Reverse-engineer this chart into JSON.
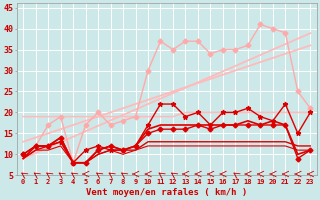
{
  "xlabel": "Vent moyen/en rafales ( km/h )",
  "background_color": "#cce8e8",
  "grid_color": "#ffffff",
  "x_values": [
    0,
    1,
    2,
    3,
    4,
    5,
    6,
    7,
    8,
    9,
    10,
    11,
    12,
    13,
    14,
    15,
    16,
    17,
    18,
    19,
    20,
    21,
    22,
    23
  ],
  "lines": [
    {
      "y": [
        9.0,
        10.3,
        11.6,
        12.9,
        14.2,
        15.5,
        16.8,
        18.1,
        19.4,
        20.7,
        22.0,
        23.3,
        24.6,
        25.9,
        27.2,
        28.5,
        29.8,
        31.1,
        32.4,
        33.7,
        35.0,
        36.3,
        37.6,
        38.9
      ],
      "color": "#ffbbbb",
      "marker": null,
      "lw": 1.3,
      "zorder": 1
    },
    {
      "y": [
        13.0,
        14.0,
        15.0,
        16.0,
        17.0,
        18.0,
        19.0,
        20.0,
        21.0,
        22.0,
        23.0,
        24.0,
        25.0,
        26.0,
        27.0,
        28.0,
        29.0,
        30.0,
        31.0,
        32.0,
        33.0,
        34.0,
        35.0,
        36.0
      ],
      "color": "#ffbbbb",
      "marker": null,
      "lw": 1.3,
      "zorder": 1
    },
    {
      "y": [
        19,
        19,
        19,
        19,
        19,
        19,
        19,
        19,
        19,
        19,
        19,
        19,
        19,
        20,
        20,
        20,
        20,
        20,
        20,
        20,
        20,
        20,
        20,
        20
      ],
      "color": "#ffbbbb",
      "marker": null,
      "lw": 1.1,
      "zorder": 1
    },
    {
      "y": [
        10,
        12,
        17,
        19,
        8,
        17,
        20,
        17,
        18,
        19,
        30,
        37,
        35,
        37,
        37,
        34,
        35,
        35,
        36,
        41,
        40,
        39,
        25,
        21
      ],
      "color": "#ffaaaa",
      "marker": "D",
      "lw": 1.0,
      "ms": 2.5,
      "zorder": 2
    },
    {
      "y": [
        10,
        12,
        12,
        13,
        8,
        11,
        12,
        11,
        11,
        12,
        17,
        22,
        22,
        19,
        20,
        17,
        20,
        20,
        21,
        19,
        18,
        22,
        15,
        20
      ],
      "color": "#dd0000",
      "marker": "*",
      "lw": 1.0,
      "ms": 3.5,
      "zorder": 3
    },
    {
      "y": [
        10,
        12,
        12,
        14,
        8,
        8,
        11,
        12,
        11,
        12,
        15,
        16,
        16,
        16,
        17,
        16,
        17,
        17,
        17,
        17,
        17,
        17,
        9,
        11
      ],
      "color": "#dd0000",
      "marker": "D",
      "lw": 1.0,
      "ms": 2.5,
      "zorder": 3
    },
    {
      "y": [
        9,
        12,
        12,
        14,
        8,
        8,
        11,
        12,
        11,
        12,
        16,
        17,
        17,
        17,
        17,
        17,
        17,
        17,
        18,
        17,
        18,
        17,
        10,
        11
      ],
      "color": "#dd0000",
      "marker": null,
      "lw": 1.2,
      "zorder": 3
    },
    {
      "y": [
        9,
        11,
        12,
        13,
        8,
        8,
        10,
        11,
        11,
        11,
        13,
        13,
        13,
        13,
        13,
        13,
        13,
        13,
        13,
        13,
        13,
        13,
        12,
        12
      ],
      "color": "#dd0000",
      "marker": null,
      "lw": 1.0,
      "zorder": 3
    },
    {
      "y": [
        9,
        11,
        11,
        12,
        8,
        8,
        10,
        11,
        10,
        11,
        12,
        12,
        12,
        12,
        12,
        12,
        12,
        12,
        12,
        12,
        12,
        12,
        11,
        11
      ],
      "color": "#dd0000",
      "marker": null,
      "lw": 0.8,
      "zorder": 3
    }
  ],
  "wind_directions": [
    225,
    225,
    225,
    225,
    225,
    270,
    225,
    225,
    225,
    270,
    270,
    225,
    225,
    270,
    270,
    270,
    270,
    225,
    270,
    270,
    270,
    270,
    270,
    270
  ],
  "ylim": [
    5,
    46
  ],
  "yticks": [
    5,
    10,
    15,
    20,
    25,
    30,
    35,
    40,
    45
  ],
  "xlim": [
    -0.5,
    23.5
  ],
  "axis_color": "#cc0000",
  "tick_color": "#cc0000"
}
